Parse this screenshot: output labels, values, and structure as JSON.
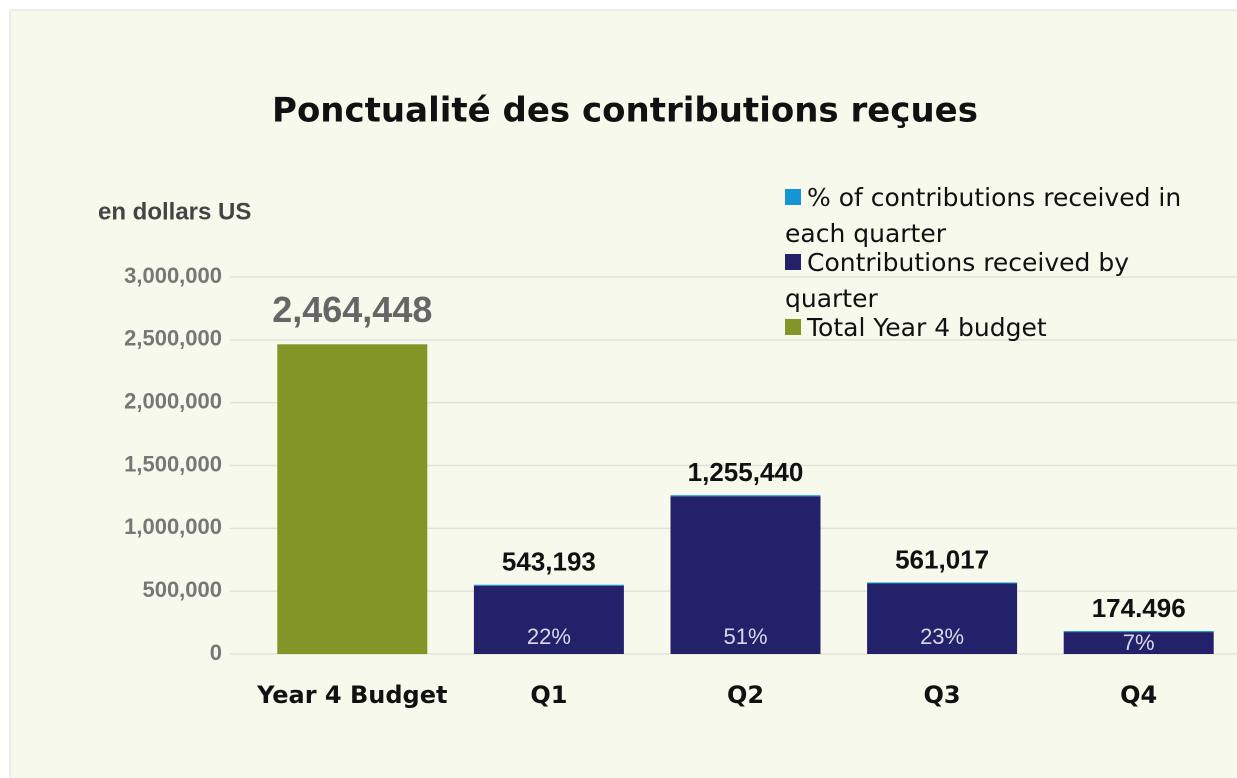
{
  "chart_data": {
    "type": "bar",
    "title": "Ponctualité des contributions reçues",
    "y_label": "en dollars US",
    "categories": [
      "Year 4 Budget",
      "Q1",
      "Q2",
      "Q3",
      "Q4"
    ],
    "series": [
      {
        "name": "Total Year 4 budget",
        "color": "#839526",
        "values": [
          2464448,
          null,
          null,
          null,
          null
        ],
        "value_labels": [
          "2,464,448",
          null,
          null,
          null,
          null
        ]
      },
      {
        "name": "Contributions received by quarter",
        "color": "#23216a",
        "values": [
          null,
          543193,
          1255440,
          561017,
          174496
        ],
        "value_labels": [
          null,
          "543,193",
          "1,255,440",
          "561,017",
          "174.496"
        ]
      },
      {
        "name": "% of contributions received in each quarter",
        "color": "#1496d4",
        "values": [
          null,
          22,
          51,
          23,
          7
        ],
        "value_labels": [
          null,
          "22%",
          "51%",
          "23%",
          "7%"
        ]
      }
    ],
    "legend_order": [
      2,
      1,
      0
    ],
    "ylim": [
      0,
      3000000
    ],
    "yticks": [
      0,
      {
        "value": 500000,
        "label": "500,000"
      },
      {
        "value": 1000000,
        "label": "1,000,000"
      },
      {
        "value": 1500000,
        "label": "1,500,000"
      },
      {
        "value": 2000000,
        "label": "2,000,000"
      },
      {
        "value": 2500000,
        "label": "2,500,000"
      },
      {
        "value": 3000000,
        "label": "3,000,000"
      }
    ],
    "grid": true,
    "legend": "upper right"
  }
}
